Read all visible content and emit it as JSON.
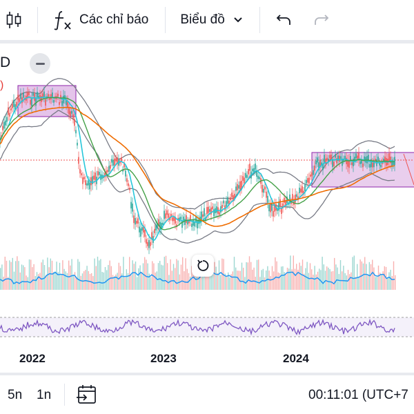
{
  "toolbar": {
    "indicators_label": "Các chỉ báo",
    "chart_type_label": "Biểu đồ"
  },
  "chart": {
    "symbol_suffix": "D",
    "paren_text": ")",
    "x_axis_labels": [
      "2022",
      "2023",
      "2024"
    ]
  },
  "bottom": {
    "range_5y": "5n",
    "range_1y": "1n",
    "clock": "00:11:01 (UTC+7"
  },
  "colors": {
    "candle_up": "#26a69a",
    "candle_down": "#ef5350",
    "bollinger": "#787b86",
    "ma_fast": "#26c6da",
    "ma_mid": "#43a047",
    "ma_slow": "#ef6c00",
    "rect_fill": "#ce93d8",
    "rect_stroke": "#8e24aa",
    "rsi_line": "#7e57c2",
    "volume_ma": "#2196f3",
    "dotted_line": "#ef5350"
  },
  "icons": [
    "candles-icon",
    "fx-icon",
    "chevron-down-icon",
    "undo-icon",
    "redo-icon",
    "reset-icon",
    "calendar-goto-icon"
  ]
}
